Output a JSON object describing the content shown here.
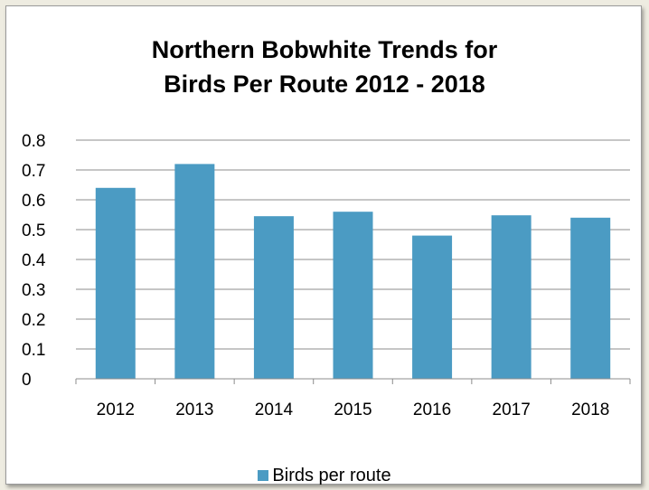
{
  "chart_data": {
    "type": "bar",
    "title_line1": "Northern Bobwhite Trends for",
    "title_line2": "Birds Per Route 2012 - 2018",
    "categories": [
      "2012",
      "2013",
      "2014",
      "2015",
      "2016",
      "2017",
      "2018"
    ],
    "series": [
      {
        "name": "Birds per route",
        "values": [
          0.64,
          0.72,
          0.545,
          0.56,
          0.48,
          0.548,
          0.54
        ],
        "color": "#4b9bc3"
      }
    ],
    "y_ticks": [
      "0",
      "0.1",
      "0.2",
      "0.3",
      "0.4",
      "0.5",
      "0.6",
      "0.7",
      "0.8"
    ],
    "ylim": [
      0,
      0.8
    ],
    "grid": true,
    "legend_position": "bottom"
  }
}
